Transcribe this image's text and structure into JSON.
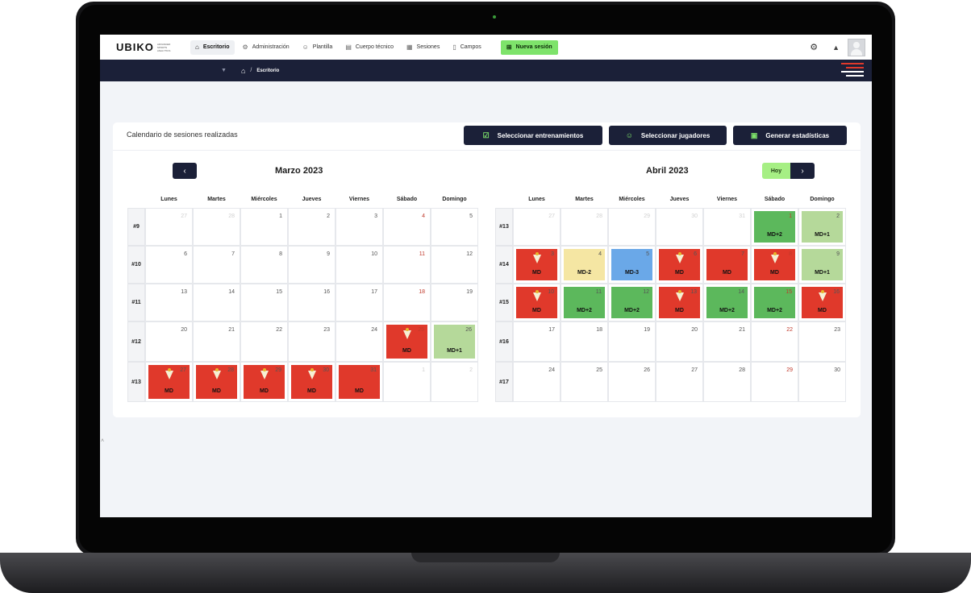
{
  "app": {
    "logo": "UBIKO",
    "logo_tagline": "ADVANCED SPORTS ANALYTICS"
  },
  "nav": {
    "items": [
      {
        "label": "Escritorio",
        "icon": "home-icon"
      },
      {
        "label": "Administración",
        "icon": "gear-icon"
      },
      {
        "label": "Plantilla",
        "icon": "users-icon"
      },
      {
        "label": "Cuerpo técnico",
        "icon": "clipboard-icon"
      },
      {
        "label": "Sesiones",
        "icon": "sessions-icon"
      },
      {
        "label": "Campos",
        "icon": "field-icon"
      }
    ],
    "new_session": "Nueva sesión"
  },
  "breadcrumb": {
    "current": "Escritorio"
  },
  "card": {
    "title": "Calendario de sesiones realizadas",
    "buttons": {
      "select_trainings": "Seleccionar entrenamientos",
      "select_players": "Seleccionar jugadores",
      "generate_stats": "Generar estadísticas"
    }
  },
  "calendar": {
    "day_headers": [
      "Lunes",
      "Martes",
      "Miércoles",
      "Jueves",
      "Viernes",
      "Sábado",
      "Domingo"
    ],
    "today_label": "Hoy",
    "colors": {
      "red": "#e0392b",
      "green": "#5cb85c",
      "lightgreen": "#b5d99a",
      "yellow": "#f5e6a3",
      "blue": "#6aa8e8"
    },
    "months": [
      {
        "title": "Marzo 2023",
        "weeks": [
          {
            "label": "#9",
            "days": [
              {
                "d": "27",
                "o": true
              },
              {
                "d": "28",
                "o": true
              },
              {
                "d": "1"
              },
              {
                "d": "2"
              },
              {
                "d": "3"
              },
              {
                "d": "4"
              },
              {
                "d": "5"
              }
            ]
          },
          {
            "label": "#10",
            "days": [
              {
                "d": "6"
              },
              {
                "d": "7"
              },
              {
                "d": "8"
              },
              {
                "d": "9"
              },
              {
                "d": "10"
              },
              {
                "d": "11"
              },
              {
                "d": "12"
              }
            ]
          },
          {
            "label": "#11",
            "days": [
              {
                "d": "13"
              },
              {
                "d": "14"
              },
              {
                "d": "15"
              },
              {
                "d": "16"
              },
              {
                "d": "17"
              },
              {
                "d": "18"
              },
              {
                "d": "19"
              }
            ]
          },
          {
            "label": "#12",
            "days": [
              {
                "d": "20"
              },
              {
                "d": "21"
              },
              {
                "d": "22"
              },
              {
                "d": "23"
              },
              {
                "d": "24"
              },
              {
                "d": "25",
                "s": "red",
                "t": "MD",
                "c": true
              },
              {
                "d": "26",
                "s": "lightgreen",
                "t": "MD+1"
              }
            ]
          },
          {
            "label": "#13",
            "days": [
              {
                "d": "27",
                "s": "red",
                "t": "MD",
                "c": true
              },
              {
                "d": "28",
                "s": "red",
                "t": "MD",
                "c": true
              },
              {
                "d": "29",
                "s": "red",
                "t": "MD",
                "c": true
              },
              {
                "d": "30",
                "s": "red",
                "t": "MD",
                "c": true
              },
              {
                "d": "31",
                "s": "red",
                "t": "MD"
              },
              {
                "d": "1",
                "o": true
              },
              {
                "d": "2",
                "o": true
              }
            ]
          }
        ]
      },
      {
        "title": "Abril 2023",
        "weeks": [
          {
            "label": "#13",
            "days": [
              {
                "d": "27",
                "o": true
              },
              {
                "d": "28",
                "o": true
              },
              {
                "d": "29",
                "o": true
              },
              {
                "d": "30",
                "o": true
              },
              {
                "d": "31",
                "o": true
              },
              {
                "d": "1",
                "s": "green",
                "t": "MD+2"
              },
              {
                "d": "2",
                "s": "lightgreen",
                "t": "MD+1"
              }
            ]
          },
          {
            "label": "#14",
            "days": [
              {
                "d": "3",
                "s": "red",
                "t": "MD",
                "c": true
              },
              {
                "d": "4",
                "s": "yellow",
                "t": "MD-2"
              },
              {
                "d": "5",
                "s": "blue",
                "t": "MD-3"
              },
              {
                "d": "6",
                "s": "red",
                "t": "MD",
                "c": true
              },
              {
                "d": "7",
                "s": "red",
                "t": "MD"
              },
              {
                "d": "8",
                "s": "red",
                "t": "MD",
                "c": true
              },
              {
                "d": "9",
                "s": "lightgreen",
                "t": "MD+1"
              }
            ]
          },
          {
            "label": "#15",
            "days": [
              {
                "d": "10",
                "s": "red",
                "t": "MD",
                "c": true
              },
              {
                "d": "11",
                "s": "green",
                "t": "MD+2"
              },
              {
                "d": "12",
                "s": "green",
                "t": "MD+2"
              },
              {
                "d": "13",
                "s": "red",
                "t": "MD",
                "c": true
              },
              {
                "d": "14",
                "s": "green",
                "t": "MD+2"
              },
              {
                "d": "15",
                "s": "green",
                "t": "MD+2"
              },
              {
                "d": "16",
                "s": "red",
                "t": "MD",
                "c": true
              }
            ]
          },
          {
            "label": "#16",
            "days": [
              {
                "d": "17"
              },
              {
                "d": "18"
              },
              {
                "d": "19"
              },
              {
                "d": "20"
              },
              {
                "d": "21"
              },
              {
                "d": "22"
              },
              {
                "d": "23"
              }
            ]
          },
          {
            "label": "#17",
            "days": [
              {
                "d": "24"
              },
              {
                "d": "25"
              },
              {
                "d": "26"
              },
              {
                "d": "27"
              },
              {
                "d": "28"
              },
              {
                "d": "29"
              },
              {
                "d": "30"
              }
            ]
          }
        ]
      }
    ]
  }
}
